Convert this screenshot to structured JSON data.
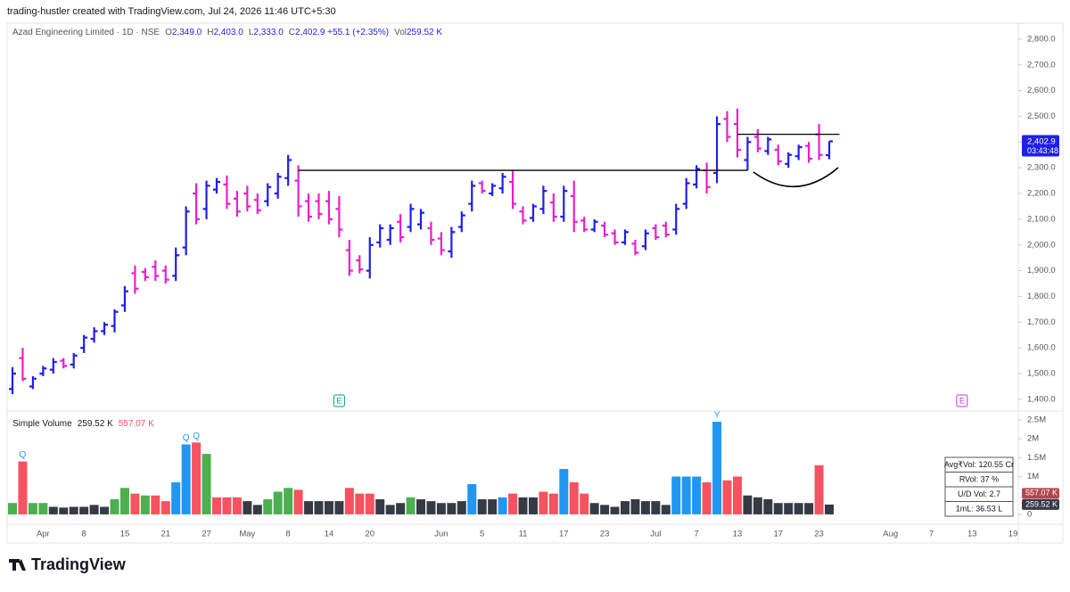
{
  "header": {
    "credit": "trading-hustler created with TradingView.com, Jul 24, 2026 11:46 UTC+5:30",
    "symbol": "Azad Engineering Limited · 1D · NSE",
    "ohlc": [
      {
        "key": "O",
        "value": "2,349.0"
      },
      {
        "key": "H",
        "value": "2,403.0"
      },
      {
        "key": "L",
        "value": "2,333.0"
      },
      {
        "key": "C",
        "value": "2,402.9 +55.1 (+2.35%)"
      },
      {
        "key": "Vol",
        "value": "259.52 K"
      }
    ]
  },
  "footer": {
    "logo": "TradingView"
  },
  "chart_data": {
    "type": "ohlc",
    "categories": [
      null,
      null,
      null,
      "Apr",
      null,
      null,
      null,
      "8",
      null,
      null,
      null,
      "15",
      null,
      null,
      null,
      "21",
      null,
      null,
      null,
      "27",
      null,
      null,
      null,
      "May",
      null,
      null,
      null,
      "8",
      null,
      null,
      null,
      "14",
      null,
      null,
      null,
      "20",
      null,
      null,
      null,
      null,
      null,
      null,
      "Jun",
      null,
      null,
      null,
      "5",
      null,
      null,
      null,
      "11",
      null,
      null,
      null,
      "17",
      null,
      null,
      null,
      "23",
      null,
      null,
      null,
      null,
      "Jul",
      null,
      null,
      null,
      "7",
      null,
      null,
      null,
      "13",
      null,
      null,
      null,
      "17",
      null,
      null,
      null,
      "23",
      null,
      null,
      null,
      null,
      null,
      null,
      "Aug",
      null,
      null,
      null,
      "7",
      null,
      null,
      null,
      "13",
      null,
      null,
      null,
      "19"
    ],
    "open": [
      1440,
      1560,
      1450,
      1500,
      1515,
      1550,
      1535,
      1600,
      1635,
      1665,
      1685,
      1765,
      1890,
      1895,
      1915,
      1900,
      1880,
      1990,
      2200,
      2140,
      2215,
      2235,
      2180,
      2200,
      2175,
      2170,
      2200,
      2260,
      2250,
      2170,
      2170,
      2170,
      2140,
      1980,
      1940,
      1900,
      2010,
      2020,
      2090,
      2070,
      2080,
      2065,
      2025,
      1975,
      2070,
      2160,
      2240,
      2200,
      2220,
      2245,
      2130,
      2105,
      2140,
      2165,
      2110,
      2190,
      2095,
      2060,
      2075,
      2045,
      2010,
      2005,
      1995,
      2065,
      2075,
      2060,
      2160,
      2235,
      2290,
      2280,
      2490,
      2470,
      2330,
      2420,
      2365,
      2370,
      2315,
      2345,
      2385,
      2430,
      2349,
      null,
      null,
      null,
      null,
      null,
      null,
      null,
      null,
      null,
      null,
      null,
      null,
      null,
      null,
      null,
      null,
      null,
      null
    ],
    "high": [
      1525,
      1600,
      1490,
      1530,
      1560,
      1560,
      1580,
      1650,
      1680,
      1700,
      1750,
      1840,
      1920,
      1910,
      1940,
      1920,
      1990,
      2150,
      2240,
      2250,
      2260,
      2270,
      2210,
      2230,
      2200,
      2240,
      2280,
      2350,
      2310,
      2200,
      2200,
      2210,
      2190,
      2020,
      1960,
      2030,
      2080,
      2080,
      2120,
      2160,
      2140,
      2090,
      2050,
      2070,
      2130,
      2250,
      2250,
      2240,
      2280,
      2290,
      2150,
      2160,
      2230,
      2200,
      2230,
      2250,
      2110,
      2100,
      2090,
      2060,
      2060,
      2020,
      2060,
      2080,
      2090,
      2160,
      2260,
      2310,
      2320,
      2500,
      2520,
      2530,
      2420,
      2450,
      2420,
      2390,
      2360,
      2390,
      2400,
      2470,
      2403,
      null,
      null,
      null,
      null,
      null,
      null,
      null,
      null,
      null,
      null,
      null,
      null,
      null,
      null,
      null,
      null,
      null,
      null
    ],
    "low": [
      1420,
      1470,
      1440,
      1490,
      1500,
      1520,
      1520,
      1580,
      1620,
      1650,
      1660,
      1740,
      1810,
      1860,
      1860,
      1850,
      1860,
      1960,
      2080,
      2100,
      2200,
      2140,
      2110,
      2130,
      2120,
      2150,
      2180,
      2230,
      2110,
      2090,
      2100,
      2080,
      2030,
      1880,
      1890,
      1870,
      1990,
      2000,
      2010,
      2050,
      2060,
      2000,
      1960,
      1950,
      2050,
      2130,
      2200,
      2190,
      2200,
      2140,
      2080,
      2090,
      2120,
      2090,
      2090,
      2050,
      2050,
      2050,
      2030,
      2000,
      2000,
      1960,
      1980,
      2020,
      2030,
      2040,
      2140,
      2220,
      2200,
      2240,
      2400,
      2340,
      2290,
      2360,
      2350,
      2310,
      2300,
      2330,
      2320,
      2330,
      2333,
      null,
      null,
      null,
      null,
      null,
      null,
      null,
      null,
      null,
      null,
      null,
      null,
      null,
      null,
      null,
      null,
      null,
      null
    ],
    "close": [
      1500,
      1480,
      1480,
      1520,
      1545,
      1530,
      1570,
      1640,
      1665,
      1690,
      1740,
      1820,
      1830,
      1875,
      1880,
      1865,
      1960,
      2130,
      2100,
      2230,
      2245,
      2160,
      2130,
      2150,
      2135,
      2225,
      2265,
      2330,
      2150,
      2110,
      2120,
      2100,
      2060,
      1900,
      1905,
      2000,
      2065,
      2065,
      2030,
      2140,
      2125,
      2020,
      1980,
      2050,
      2115,
      2230,
      2210,
      2230,
      2265,
      2160,
      2095,
      2150,
      2210,
      2110,
      2210,
      2090,
      2060,
      2090,
      2040,
      2010,
      2050,
      1970,
      2045,
      2030,
      2040,
      2140,
      2240,
      2295,
      2225,
      2470,
      2420,
      2370,
      2400,
      2375,
      2410,
      2325,
      2350,
      2380,
      2335,
      2350,
      2402.9,
      null,
      null,
      null,
      null,
      null,
      null,
      null,
      null,
      null,
      null,
      null,
      null,
      null,
      null,
      null,
      null,
      null,
      null
    ],
    "up_color": "#1f1fe8",
    "down_color": "#e81fcf",
    "ylim": [
      1358,
      2862
    ],
    "yticks": [
      {
        "value": 1400,
        "label": "1,400.0"
      },
      {
        "value": 1500,
        "label": "1,500.0"
      },
      {
        "value": 1600,
        "label": "1,600.0"
      },
      {
        "value": 1700,
        "label": "1,700.0"
      },
      {
        "value": 1800,
        "label": "1,800.0"
      },
      {
        "value": 1900,
        "label": "1,900.0"
      },
      {
        "value": 2000,
        "label": "2,000.0"
      },
      {
        "value": 2100,
        "label": "2,100.0"
      },
      {
        "value": 2200,
        "label": "2,200.0"
      },
      {
        "value": 2300,
        "label": "2,300.0"
      },
      {
        "value": 2400,
        "label": "2,400.0"
      },
      {
        "value": 2500,
        "label": "2,500.0"
      },
      {
        "value": 2600,
        "label": "2,600.0"
      },
      {
        "value": 2700,
        "label": "2,700.0"
      },
      {
        "value": 2800,
        "label": "2,800.0"
      }
    ],
    "lines": [
      {
        "price": 2290,
        "from": 28,
        "to": 72
      },
      {
        "price": 2430,
        "from": 71,
        "to": 81
      }
    ],
    "earnings": [
      {
        "index": 32,
        "label": "E",
        "color": "#089981"
      },
      {
        "index": 93,
        "label": "E",
        "color": "#b33bd5"
      }
    ],
    "price_tag": {
      "value": 2402.9,
      "label": "2,402.9",
      "timer": "03:43:48",
      "color": "#1f1fe8"
    },
    "volume": {
      "name": "Simple Volume",
      "legend_values": [
        "259.52 K",
        "557.07 K"
      ],
      "values": [
        300000,
        1400000,
        300000,
        300000,
        200000,
        180000,
        200000,
        200000,
        250000,
        200000,
        400000,
        700000,
        550000,
        500000,
        500000,
        350000,
        850000,
        1850000,
        1900000,
        1600000,
        450000,
        450000,
        450000,
        350000,
        250000,
        400000,
        600000,
        700000,
        650000,
        350000,
        350000,
        350000,
        350000,
        700000,
        550000,
        550000,
        400000,
        250000,
        300000,
        450000,
        400000,
        350000,
        300000,
        300000,
        350000,
        800000,
        400000,
        400000,
        450000,
        550000,
        450000,
        450000,
        600000,
        550000,
        1200000,
        850000,
        550000,
        300000,
        250000,
        200000,
        350000,
        400000,
        350000,
        350000,
        250000,
        1000000,
        1000000,
        1000000,
        850000,
        2450000,
        900000,
        1000000,
        500000,
        450000,
        400000,
        300000,
        300000,
        300000,
        300000,
        1300000,
        259520,
        null,
        null,
        null,
        null,
        null,
        null,
        null,
        null,
        null,
        null,
        null,
        null,
        null,
        null,
        null,
        null,
        null,
        null
      ],
      "colors": [
        "#4caf50",
        "#f7525f",
        "#4caf50",
        "#4caf50",
        "#363a45",
        "#363a45",
        "#363a45",
        "#363a45",
        "#363a45",
        "#363a45",
        "#4caf50",
        "#4caf50",
        "#f7525f",
        "#4caf50",
        "#f7525f",
        "#f7525f",
        "#2196f3",
        "#2196f3",
        "#f7525f",
        "#4caf50",
        "#f7525f",
        "#f7525f",
        "#f7525f",
        "#363a45",
        "#363a45",
        "#4caf50",
        "#4caf50",
        "#4caf50",
        "#f7525f",
        "#363a45",
        "#363a45",
        "#363a45",
        "#363a45",
        "#f7525f",
        "#f7525f",
        "#f7525f",
        "#363a45",
        "#363a45",
        "#363a45",
        "#4caf50",
        "#363a45",
        "#363a45",
        "#363a45",
        "#363a45",
        "#363a45",
        "#2196f3",
        "#363a45",
        "#363a45",
        "#2196f3",
        "#f7525f",
        "#363a45",
        "#363a45",
        "#f7525f",
        "#f7525f",
        "#2196f3",
        "#f7525f",
        "#f7525f",
        "#363a45",
        "#363a45",
        "#363a45",
        "#363a45",
        "#363a45",
        "#363a45",
        "#363a45",
        "#363a45",
        "#2196f3",
        "#2196f3",
        "#2196f3",
        "#f7525f",
        "#2196f3",
        "#f7525f",
        "#f7525f",
        "#363a45",
        "#363a45",
        "#363a45",
        "#363a45",
        "#363a45",
        "#363a45",
        "#363a45",
        "#f7525f",
        "#363a45",
        null,
        null,
        null,
        null,
        null,
        null,
        null,
        null,
        null,
        null,
        null,
        null,
        null,
        null,
        null,
        null,
        null,
        null
      ],
      "ylim": [
        -190000,
        2710000
      ],
      "yticks": [
        0,
        {
          "value": 1000000,
          "label": "1M"
        },
        {
          "value": 1500000,
          "label": "1.5M"
        },
        {
          "value": 2000000,
          "label": "2M"
        },
        {
          "value": 2500000,
          "label": "2.5M"
        }
      ],
      "markers": [
        {
          "index": 1,
          "label": "Q"
        },
        {
          "index": 17,
          "label": "Q"
        },
        {
          "index": 18,
          "label": "Q"
        },
        {
          "index": 69,
          "label": "Y"
        }
      ],
      "tags": [
        {
          "value": 557070,
          "label": "557.07 K",
          "color": "#b2474f"
        },
        {
          "value": 259520,
          "label": "259.52 K",
          "color": "#363a45"
        }
      ]
    },
    "stats": [
      "Avg₹Vol: 120.55 Cr",
      "RVol: 37 %",
      "U/D Vol: 2.7",
      "1mL: 36.53 L"
    ]
  }
}
